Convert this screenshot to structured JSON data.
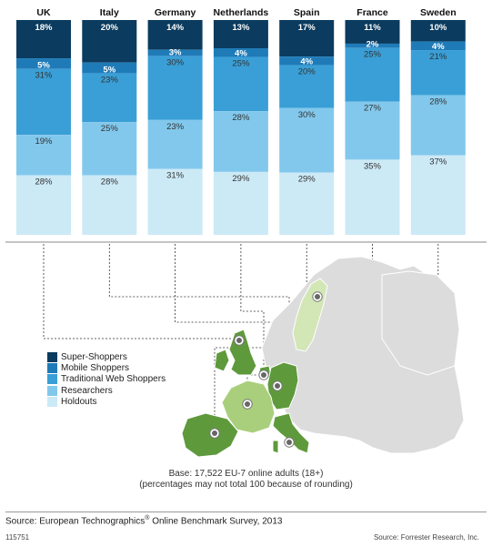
{
  "chart_data": {
    "type": "bar",
    "stacked": true,
    "categories": [
      "UK",
      "Italy",
      "Germany",
      "Netherlands",
      "Spain",
      "France",
      "Sweden"
    ],
    "series": [
      {
        "name": "Super-Shoppers",
        "color": "#0b3b5e",
        "values": [
          18,
          20,
          14,
          13,
          17,
          11,
          10
        ]
      },
      {
        "name": "Mobile Shoppers",
        "color": "#1f7bb8",
        "values": [
          5,
          5,
          3,
          4,
          4,
          2,
          4
        ]
      },
      {
        "name": "Traditional Web Shoppers",
        "color": "#3a9fd6",
        "values": [
          31,
          23,
          30,
          25,
          20,
          25,
          21
        ]
      },
      {
        "name": "Researchers",
        "color": "#82c8ec",
        "values": [
          19,
          25,
          23,
          28,
          30,
          27,
          28
        ]
      },
      {
        "name": "Holdouts",
        "color": "#cce9f6",
        "values": [
          28,
          28,
          31,
          29,
          29,
          35,
          37
        ]
      }
    ],
    "value_labels": [
      [
        "18%",
        "20%",
        "14%",
        "13%",
        "17%",
        "11%",
        "10%"
      ],
      [
        "5%",
        "5%",
        "3%",
        "4%",
        "4%",
        "2%",
        "4%"
      ],
      [
        "31%",
        "23%",
        "30%",
        "25%",
        "20%",
        "25%",
        "21%"
      ],
      [
        "19%",
        "25%",
        "23%",
        "28%",
        "30%",
        "27%",
        "28%"
      ],
      [
        "28%",
        "28%",
        "31%",
        "29%",
        "29%",
        "35%",
        "37%"
      ]
    ],
    "title": "",
    "xlabel": "",
    "ylabel": "",
    "ylim": [
      0,
      100
    ],
    "grid": false,
    "legend_placement": "bottom-left"
  },
  "legend": [
    "Super-Shoppers",
    "Mobile Shoppers",
    "Traditional Web Shoppers",
    "Researchers",
    "Holdouts"
  ],
  "notes": {
    "base": "Base: 17,522 EU-7 online adults (18+)",
    "rounding": "(percentages may not total 100 because of rounding)"
  },
  "source": {
    "survey_prefix": "Source: European Technographics",
    "survey_reg": "®",
    "survey_suffix": " Online Benchmark Survey, 2013",
    "chart_id": "115751",
    "right": "Source: Forrester Research, Inc."
  },
  "map": {
    "colors": {
      "land_grey": "#dcdcdc",
      "land_border": "#ffffff",
      "green_dark": "#5e9a3c",
      "green_light": "#a9cf7c",
      "green_pale": "#d3e6b6",
      "marker": "#666666"
    }
  }
}
